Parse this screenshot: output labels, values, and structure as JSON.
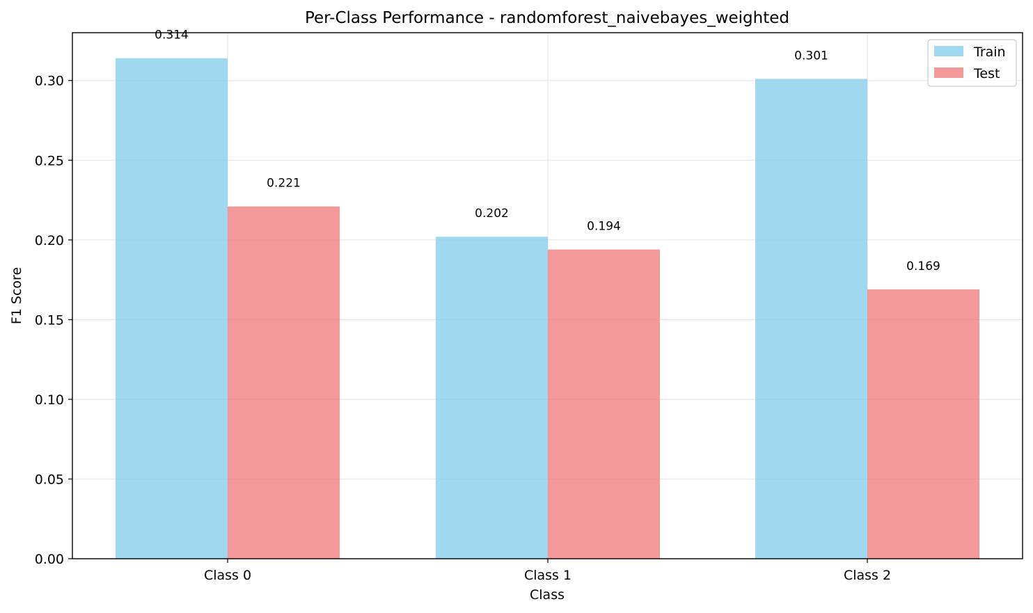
{
  "chart_data": {
    "type": "bar",
    "title": "Per-Class Performance - randomforest_naivebayes_weighted",
    "xlabel": "Class",
    "ylabel": "F1 Score",
    "categories": [
      "Class 0",
      "Class 1",
      "Class 2"
    ],
    "series": [
      {
        "name": "Train",
        "values": [
          0.314,
          0.202,
          0.301
        ],
        "color": "#87ceeb",
        "labels": [
          "0.314",
          "0.202",
          "0.301"
        ]
      },
      {
        "name": "Test",
        "values": [
          0.221,
          0.194,
          0.169
        ],
        "color": "#f08080",
        "labels": [
          "0.221",
          "0.194",
          "0.169"
        ]
      }
    ],
    "ylim": [
      0,
      0.33
    ],
    "yticks": [
      0,
      0.05,
      0.1,
      0.15,
      0.2,
      0.25,
      0.3
    ],
    "ytick_labels": [
      "0.00",
      "0.05",
      "0.10",
      "0.15",
      "0.20",
      "0.25",
      "0.30"
    ],
    "grid": true,
    "legend": "top-right",
    "bar_opacity": 0.8
  }
}
